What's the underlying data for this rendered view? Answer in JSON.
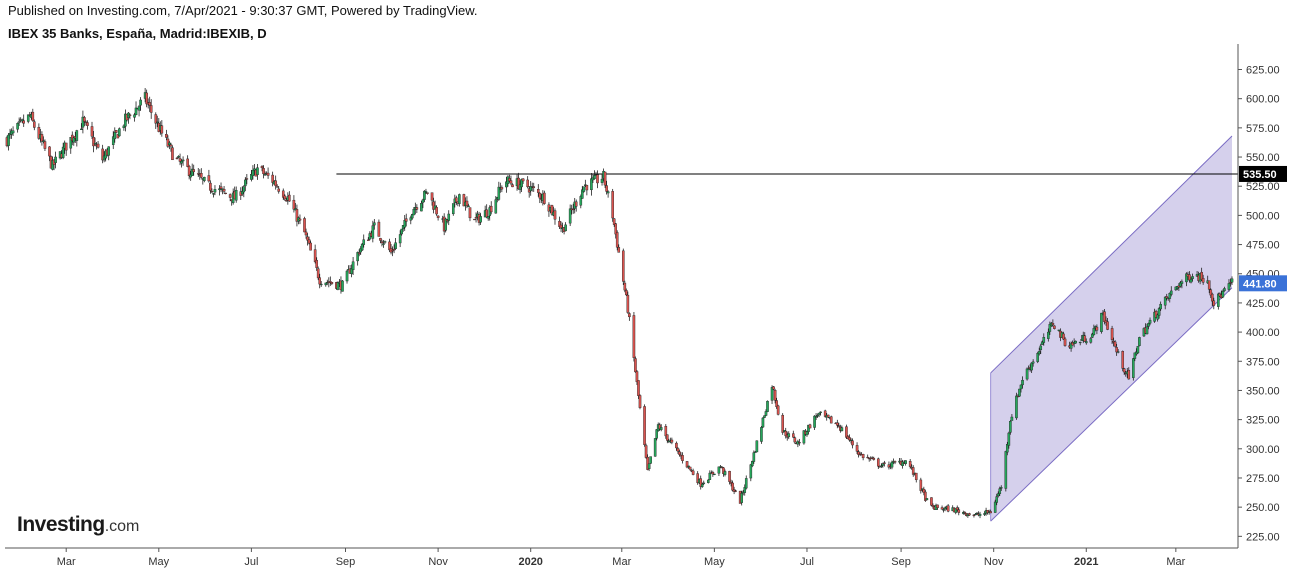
{
  "header": {
    "published": "Published on Investing.com, 7/Apr/2021 - 9:30:37 GMT, Powered by TradingView.",
    "symbol": "IBEX 35 Banks, España, Madrid:IBEXIB, D"
  },
  "logo": {
    "brand": "Investing",
    "suffix": ".com"
  },
  "colors": {
    "up": "#26a65b",
    "down": "#d9534f",
    "wick": "#222222",
    "channel": "#b9b0e0",
    "last_price_bg": "#3a72d8"
  },
  "chart_data": {
    "type": "candlestick",
    "ylim": [
      215,
      640
    ],
    "y_ticks": [
      "625.00",
      "600.00",
      "575.00",
      "550.00",
      "525.00",
      "500.00",
      "475.00",
      "450.00",
      "425.00",
      "400.00",
      "375.00",
      "350.00",
      "325.00",
      "300.00",
      "275.00",
      "250.00",
      "225.00"
    ],
    "x_ticks": [
      {
        "label": "Mar",
        "bold": false
      },
      {
        "label": "May",
        "bold": false
      },
      {
        "label": "Jul",
        "bold": false
      },
      {
        "label": "Sep",
        "bold": false
      },
      {
        "label": "Nov",
        "bold": false
      },
      {
        "label": "2020",
        "bold": true
      },
      {
        "label": "Mar",
        "bold": false
      },
      {
        "label": "May",
        "bold": false
      },
      {
        "label": "Jul",
        "bold": false
      },
      {
        "label": "Sep",
        "bold": false
      },
      {
        "label": "Nov",
        "bold": false
      },
      {
        "label": "2021",
        "bold": true
      },
      {
        "label": "Mar",
        "bold": false
      }
    ],
    "x_tick_dates": [
      "2019-03",
      "2019-05",
      "2019-07",
      "2019-09",
      "2019-11",
      "2020-01",
      "2020-03",
      "2020-05",
      "2020-07",
      "2020-09",
      "2020-11",
      "2021-01",
      "2021-03"
    ],
    "date_range": [
      "2019-01-21",
      "2021-04-07"
    ],
    "horizontal_line": {
      "value": 535.5,
      "label": "535.50",
      "from": "2019-08-26"
    },
    "last_price": {
      "value": 441.8,
      "label": "441.80"
    },
    "channel": {
      "upper": [
        [
          "2020-10-30",
          365
        ],
        [
          "2021-04-07",
          568
        ]
      ],
      "lower": [
        [
          "2020-10-30",
          238
        ],
        [
          "2021-04-07",
          438
        ]
      ]
    },
    "close_path": [
      [
        "2019-01-21",
        565
      ],
      [
        "2019-02-05",
        585
      ],
      [
        "2019-02-20",
        542
      ],
      [
        "2019-03-01",
        560
      ],
      [
        "2019-03-12",
        580
      ],
      [
        "2019-03-25",
        548
      ],
      [
        "2019-04-08",
        580
      ],
      [
        "2019-04-22",
        600
      ],
      [
        "2019-05-01",
        575
      ],
      [
        "2019-05-12",
        548
      ],
      [
        "2019-06-03",
        525
      ],
      [
        "2019-06-20",
        515
      ],
      [
        "2019-07-05",
        540
      ],
      [
        "2019-07-15",
        530
      ],
      [
        "2019-07-25",
        515
      ],
      [
        "2019-08-05",
        485
      ],
      [
        "2019-08-15",
        445
      ],
      [
        "2019-08-30",
        440
      ],
      [
        "2019-09-10",
        470
      ],
      [
        "2019-09-20",
        490
      ],
      [
        "2019-10-01",
        468
      ],
      [
        "2019-10-15",
        505
      ],
      [
        "2019-10-25",
        520
      ],
      [
        "2019-11-05",
        490
      ],
      [
        "2019-11-15",
        518
      ],
      [
        "2019-11-25",
        495
      ],
      [
        "2019-12-05",
        505
      ],
      [
        "2019-12-15",
        530
      ],
      [
        "2019-12-30",
        525
      ],
      [
        "2020-01-10",
        515
      ],
      [
        "2020-01-22",
        488
      ],
      [
        "2020-02-05",
        525
      ],
      [
        "2020-02-18",
        533
      ],
      [
        "2020-02-24",
        500
      ],
      [
        "2020-03-05",
        420
      ],
      [
        "2020-03-12",
        345
      ],
      [
        "2020-03-18",
        280
      ],
      [
        "2020-03-25",
        320
      ],
      [
        "2020-04-08",
        295
      ],
      [
        "2020-04-22",
        270
      ],
      [
        "2020-05-05",
        285
      ],
      [
        "2020-05-18",
        255
      ],
      [
        "2020-05-28",
        300
      ],
      [
        "2020-06-08",
        355
      ],
      [
        "2020-06-15",
        315
      ],
      [
        "2020-06-25",
        305
      ],
      [
        "2020-07-08",
        330
      ],
      [
        "2020-07-22",
        320
      ],
      [
        "2020-08-05",
        295
      ],
      [
        "2020-08-20",
        285
      ],
      [
        "2020-09-05",
        290
      ],
      [
        "2020-09-20",
        250
      ],
      [
        "2020-10-05",
        248
      ],
      [
        "2020-10-20",
        243
      ],
      [
        "2020-10-30",
        246
      ],
      [
        "2020-11-06",
        268
      ],
      [
        "2020-11-12",
        325
      ],
      [
        "2020-11-20",
        360
      ],
      [
        "2020-12-01",
        385
      ],
      [
        "2020-12-10",
        408
      ],
      [
        "2020-12-20",
        388
      ],
      [
        "2021-01-05",
        398
      ],
      [
        "2021-01-12",
        415
      ],
      [
        "2021-01-22",
        380
      ],
      [
        "2021-01-29",
        360
      ],
      [
        "2021-02-05",
        395
      ],
      [
        "2021-02-18",
        420
      ],
      [
        "2021-03-02",
        440
      ],
      [
        "2021-03-12",
        450
      ],
      [
        "2021-03-22",
        445
      ],
      [
        "2021-03-26",
        425
      ],
      [
        "2021-04-07",
        442
      ]
    ]
  }
}
